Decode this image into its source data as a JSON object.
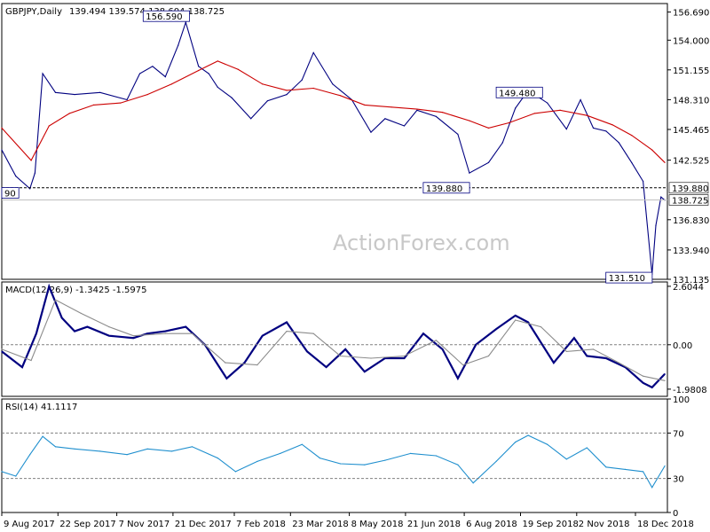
{
  "title": "GBPJPY,Daily",
  "ohlc": "139.494 139.574 138.604 138.725",
  "watermark": "ActionForex.com",
  "chart_data": [
    {
      "type": "line",
      "panel": "price",
      "series": [
        {
          "name": "",
          "color": "#000080",
          "x": [
            "2017-08-09",
            "2017-08-20",
            "2017-08-31",
            "2017-09-04",
            "2017-09-10",
            "2017-09-20",
            "2017-10-05",
            "2017-10-25",
            "2017-11-15",
            "2017-11-25",
            "2017-12-05",
            "2017-12-15",
            "2017-12-25",
            "2017-12-31",
            "2018-01-10",
            "2018-01-18",
            "2018-01-25",
            "2018-02-05",
            "2018-02-20",
            "2018-03-05",
            "2018-03-20",
            "2018-04-01",
            "2018-04-10",
            "2018-04-25",
            "2018-05-10",
            "2018-05-25",
            "2018-06-05",
            "2018-06-20",
            "2018-06-30",
            "2018-07-15",
            "2018-08-01",
            "2018-08-10",
            "2018-08-25",
            "2018-09-05",
            "2018-09-15",
            "2018-09-25",
            "2018-10-10",
            "2018-10-25",
            "2018-11-05",
            "2018-11-15",
            "2018-11-25",
            "2018-12-05",
            "2018-12-15",
            "2018-12-24",
            "2018-12-31",
            "2019-01-03",
            "2019-01-07",
            "2019-01-10"
          ],
          "values": [
            143.5,
            141.0,
            139.8,
            141.3,
            150.8,
            149.0,
            148.8,
            149.0,
            148.3,
            150.8,
            151.5,
            150.5,
            153.5,
            155.7,
            151.5,
            150.8,
            149.5,
            148.5,
            146.5,
            148.2,
            148.8,
            150.2,
            152.8,
            149.8,
            148.3,
            145.2,
            146.5,
            145.8,
            147.3,
            146.7,
            145.0,
            141.3,
            142.3,
            144.2,
            147.5,
            149.2,
            148.0,
            145.5,
            148.3,
            145.6,
            145.3,
            144.2,
            142.3,
            140.5,
            131.6,
            136.3,
            139.0,
            138.7
          ]
        },
        {
          "name": "",
          "color": "#cc0000",
          "x": [
            "2017-08-09",
            "2017-09-01",
            "2017-09-15",
            "2017-10-01",
            "2017-10-20",
            "2017-11-10",
            "2017-12-01",
            "2017-12-20",
            "2018-01-10",
            "2018-01-25",
            "2018-02-10",
            "2018-03-01",
            "2018-03-20",
            "2018-04-10",
            "2018-05-01",
            "2018-05-20",
            "2018-06-10",
            "2018-06-30",
            "2018-07-20",
            "2018-08-10",
            "2018-08-25",
            "2018-09-10",
            "2018-09-30",
            "2018-10-20",
            "2018-11-10",
            "2018-11-30",
            "2018-12-15",
            "2018-12-31",
            "2019-01-10"
          ],
          "values": [
            145.6,
            142.5,
            145.8,
            147.0,
            147.8,
            148.0,
            148.8,
            149.8,
            151.1,
            152.0,
            151.2,
            149.8,
            149.2,
            149.4,
            148.7,
            147.8,
            147.6,
            147.4,
            147.1,
            146.3,
            145.6,
            146.1,
            147.0,
            147.3,
            146.8,
            145.9,
            144.9,
            143.5,
            142.3
          ]
        }
      ],
      "y_ticks": [
        "156.690",
        "154.000",
        "151.155",
        "148.310",
        "145.465",
        "142.525",
        "136.830",
        "133.940",
        "131.135"
      ],
      "annotations": [
        "156.590",
        "149.480",
        "139.880",
        "131.510",
        "90"
      ],
      "hline_label": "139.880",
      "last_price_label": "138.725",
      "ylim": [
        131.135,
        157.5
      ]
    },
    {
      "type": "line",
      "panel": "macd",
      "title": "MACD(12,26,9) -1.3425 -1.5975",
      "series": [
        {
          "name": "",
          "color": "#000080",
          "x": [
            "2017-08-09",
            "2017-08-25",
            "2017-09-05",
            "2017-09-15",
            "2017-09-25",
            "2017-10-05",
            "2017-10-15",
            "2017-11-01",
            "2017-11-20",
            "2017-12-01",
            "2017-12-15",
            "2017-12-31",
            "2018-01-15",
            "2018-02-01",
            "2018-02-15",
            "2018-03-01",
            "2018-03-20",
            "2018-04-05",
            "2018-04-20",
            "2018-05-05",
            "2018-05-20",
            "2018-06-05",
            "2018-06-20",
            "2018-07-05",
            "2018-07-20",
            "2018-08-01",
            "2018-08-15",
            "2018-08-31",
            "2018-09-15",
            "2018-09-25",
            "2018-10-15",
            "2018-10-31",
            "2018-11-10",
            "2018-11-25",
            "2018-12-10",
            "2018-12-24",
            "2018-12-31",
            "2019-01-10"
          ],
          "values": [
            -0.3,
            -1.0,
            0.5,
            2.6,
            1.2,
            0.6,
            0.8,
            0.4,
            0.3,
            0.5,
            0.6,
            0.8,
            0.0,
            -1.5,
            -0.8,
            0.4,
            1.0,
            -0.3,
            -1.0,
            -0.2,
            -1.2,
            -0.6,
            -0.6,
            0.5,
            -0.2,
            -1.5,
            0.0,
            0.7,
            1.3,
            1.0,
            -0.8,
            0.3,
            -0.5,
            -0.6,
            -1.0,
            -1.7,
            -1.9,
            -1.3
          ]
        },
        {
          "name": "",
          "color": "#8c8c8c",
          "x": [
            "2017-08-09",
            "2017-09-01",
            "2017-09-20",
            "2017-10-10",
            "2017-11-01",
            "2017-11-20",
            "2017-12-15",
            "2018-01-05",
            "2018-01-31",
            "2018-02-25",
            "2018-03-20",
            "2018-04-10",
            "2018-05-01",
            "2018-05-25",
            "2018-06-20",
            "2018-07-15",
            "2018-08-05",
            "2018-08-25",
            "2018-09-15",
            "2018-10-05",
            "2018-10-25",
            "2018-11-15",
            "2018-12-05",
            "2018-12-24",
            "2019-01-10"
          ],
          "values": [
            -0.2,
            -0.7,
            2.0,
            1.4,
            0.8,
            0.4,
            0.5,
            0.5,
            -0.8,
            -0.9,
            0.6,
            0.5,
            -0.5,
            -0.6,
            -0.5,
            0.2,
            -0.9,
            -0.5,
            1.1,
            0.8,
            -0.3,
            -0.2,
            -0.8,
            -1.4,
            -1.6
          ]
        }
      ],
      "y_ticks": [
        "2.6044",
        "0.00",
        "-1.9808"
      ],
      "ylim": [
        -2.3,
        2.8
      ]
    },
    {
      "type": "line",
      "panel": "rsi",
      "title": "RSI(14) 41.1117",
      "series": [
        {
          "name": "",
          "color": "#1f8fce",
          "x": [
            "2017-08-09",
            "2017-08-20",
            "2017-08-31",
            "2017-09-10",
            "2017-09-20",
            "2017-10-05",
            "2017-10-25",
            "2017-11-15",
            "2017-12-01",
            "2017-12-20",
            "2018-01-05",
            "2018-01-25",
            "2018-02-08",
            "2018-02-25",
            "2018-03-15",
            "2018-04-01",
            "2018-04-15",
            "2018-05-01",
            "2018-05-20",
            "2018-06-05",
            "2018-06-25",
            "2018-07-15",
            "2018-08-01",
            "2018-08-13",
            "2018-08-31",
            "2018-09-15",
            "2018-09-25",
            "2018-10-10",
            "2018-10-25",
            "2018-11-10",
            "2018-11-25",
            "2018-12-10",
            "2018-12-24",
            "2018-12-31",
            "2019-01-10"
          ],
          "values": [
            36,
            32,
            51,
            67,
            58,
            56,
            54,
            51,
            56,
            54,
            58,
            48,
            36,
            45,
            52,
            60,
            48,
            43,
            42,
            46,
            52,
            50,
            42,
            26,
            45,
            62,
            68,
            60,
            47,
            57,
            40,
            38,
            36,
            22,
            41
          ]
        }
      ],
      "y_ticks": [
        "100",
        "70",
        "30",
        "0"
      ],
      "x_ticks": [
        "9 Aug 2017",
        "22 Sep 2017",
        "7 Nov 2017",
        "21 Dec 2017",
        "7 Feb 2018",
        "23 Mar 2018",
        "8 May 2018",
        "21 Jun 2018",
        "6 Aug 2018",
        "19 Sep 2018",
        "2 Nov 2018",
        "18 Dec 2018"
      ],
      "ylim": [
        0,
        100
      ]
    }
  ]
}
